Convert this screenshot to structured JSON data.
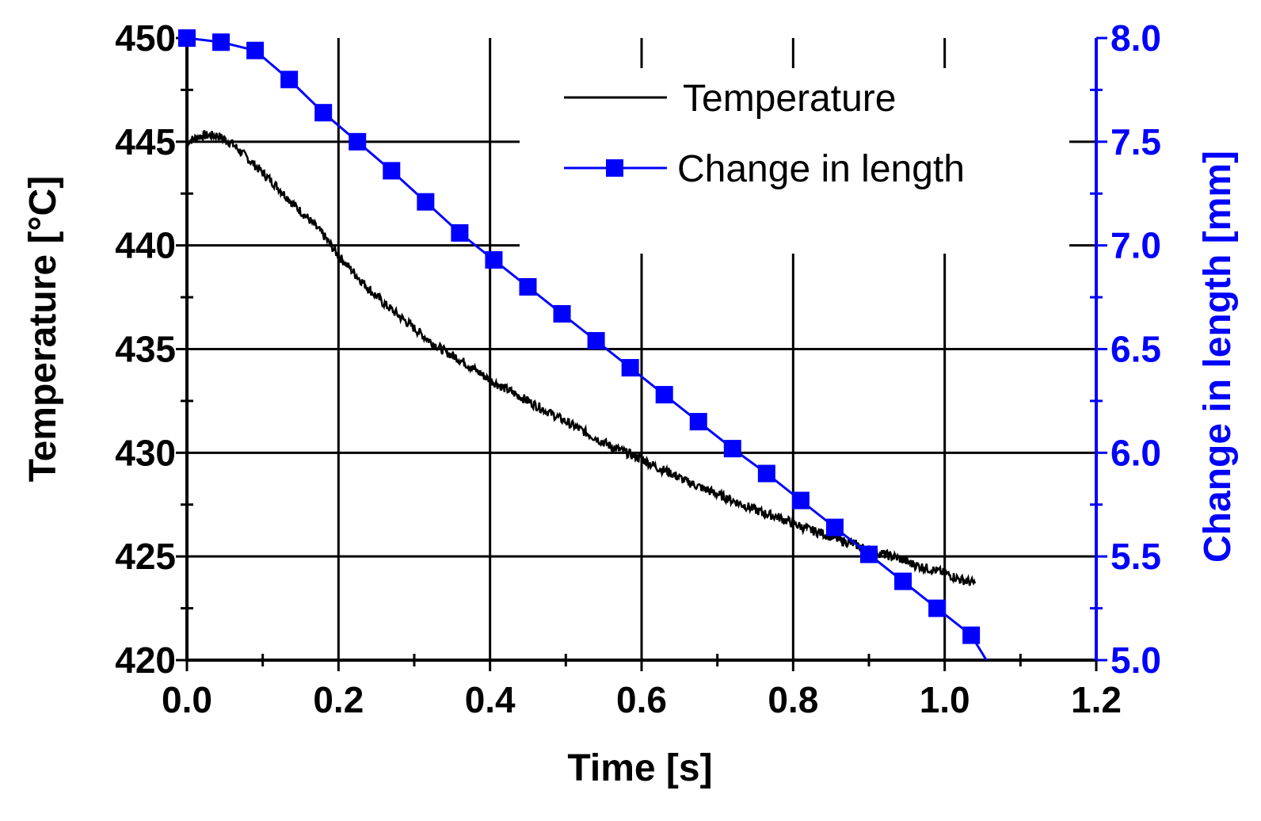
{
  "chart_data": {
    "type": "line",
    "title": "",
    "xlabel": "Time [s]",
    "ylabel_left": "Temperature [°C]",
    "ylabel_right": "Change in length [mm]",
    "xlim": [
      0.0,
      1.2
    ],
    "ylim_left": [
      420,
      450
    ],
    "ylim_right": [
      5.0,
      8.0
    ],
    "x_ticks": [
      "0.0",
      "0.2",
      "0.4",
      "0.6",
      "0.8",
      "1.0",
      "1.2"
    ],
    "y_left_ticks": [
      "420",
      "425",
      "430",
      "435",
      "440",
      "445",
      "450"
    ],
    "y_right_ticks": [
      "5.0",
      "5.5",
      "6.0",
      "6.5",
      "7.0",
      "7.5",
      "8.0"
    ],
    "grid": true,
    "legend_position": "top-right",
    "series": [
      {
        "name": "Temperature",
        "axis": "left",
        "color": "#000000",
        "marker": "none",
        "x": [
          0.0,
          0.02,
          0.04,
          0.06,
          0.08,
          0.1,
          0.12,
          0.14,
          0.16,
          0.18,
          0.2,
          0.22,
          0.24,
          0.26,
          0.28,
          0.3,
          0.32,
          0.34,
          0.36,
          0.38,
          0.4,
          0.42,
          0.44,
          0.46,
          0.48,
          0.5,
          0.52,
          0.54,
          0.56,
          0.58,
          0.6,
          0.62,
          0.64,
          0.66,
          0.68,
          0.7,
          0.72,
          0.74,
          0.76,
          0.78,
          0.8,
          0.82,
          0.84,
          0.86,
          0.88,
          0.9,
          0.92,
          0.94,
          0.96,
          0.98,
          1.0,
          1.02,
          1.04
        ],
        "values": [
          445.0,
          445.3,
          445.3,
          444.9,
          444.2,
          443.5,
          442.8,
          442.0,
          441.3,
          440.5,
          439.5,
          438.7,
          437.9,
          437.2,
          436.6,
          436.0,
          435.4,
          434.9,
          434.5,
          434.0,
          433.5,
          433.1,
          432.7,
          432.3,
          431.9,
          431.5,
          431.1,
          430.7,
          430.3,
          430.0,
          429.7,
          429.3,
          429.0,
          428.6,
          428.3,
          428.0,
          427.7,
          427.4,
          427.1,
          426.9,
          426.6,
          426.3,
          426.1,
          425.8,
          425.6,
          425.3,
          425.1,
          424.9,
          424.6,
          424.4,
          424.2,
          423.9,
          423.7
        ]
      },
      {
        "name": "Change in length",
        "axis": "right",
        "color": "#0000ff",
        "marker": "square",
        "x": [
          0.0,
          0.045,
          0.09,
          0.135,
          0.18,
          0.225,
          0.27,
          0.315,
          0.36,
          0.405,
          0.45,
          0.495,
          0.54,
          0.585,
          0.63,
          0.675,
          0.72,
          0.765,
          0.81,
          0.855,
          0.9,
          0.945,
          0.99,
          1.035
        ],
        "values": [
          8.0,
          7.98,
          7.94,
          7.8,
          7.64,
          7.5,
          7.36,
          7.21,
          7.06,
          6.93,
          6.8,
          6.67,
          6.54,
          6.41,
          6.28,
          6.15,
          6.02,
          5.9,
          5.77,
          5.64,
          5.51,
          5.38,
          5.25,
          5.12
        ]
      }
    ],
    "tail_segment_end": {
      "x": 1.055,
      "value": 5.0
    }
  }
}
